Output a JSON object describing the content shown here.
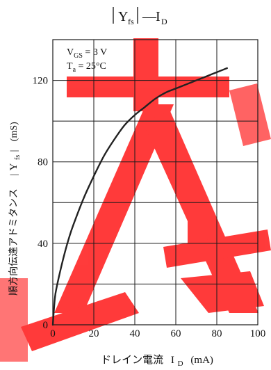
{
  "chart_data": {
    "type": "line",
    "title_main": "Y",
    "title_sub": "fs",
    "title_dash": "—",
    "title_right_main": "I",
    "title_right_sub": "D",
    "xlabel_jp": "ドレイン電流",
    "xlabel_var": "I",
    "xlabel_var_sub": "D",
    "xlabel_unit": "(mA)",
    "ylabel_jp": "順方向伝達アドミタンス",
    "ylabel_var": "Y",
    "ylabel_var_sub": "fs",
    "ylabel_unit": "(mS)",
    "annotation_line1_main": "V",
    "annotation_line1_sub": "GS",
    "annotation_line1_value": " = 3 V",
    "annotation_line2_main": "T",
    "annotation_line2_sub": "a",
    "annotation_line2_value": " = 25°C",
    "xlim": [
      0,
      100
    ],
    "ylim": [
      0,
      140
    ],
    "xticks": [
      0,
      20,
      40,
      60,
      80,
      100
    ],
    "xtick_labels": [
      "0",
      "20",
      "40",
      "60",
      "80",
      "100"
    ],
    "yticks": [
      0,
      40,
      80,
      120
    ],
    "ytick_labels": [
      "0",
      "40",
      "80",
      "120"
    ],
    "x_grid": [
      0,
      20,
      40,
      60,
      80,
      100
    ],
    "y_grid": [
      0,
      20,
      40,
      60,
      80,
      100,
      120,
      140
    ],
    "series": [
      {
        "x": [
          0,
          1,
          2,
          4,
          6,
          8,
          10,
          15,
          20,
          25,
          30,
          35,
          40,
          45,
          50,
          55,
          60,
          65,
          70,
          75,
          80,
          85
        ],
        "y": [
          0,
          13,
          19,
          28,
          36,
          43,
          49,
          62,
          73,
          83,
          91,
          98,
          103,
          107,
          111,
          114,
          116,
          118,
          120,
          122,
          124,
          126
        ]
      }
    ],
    "line_color": "#222222"
  }
}
